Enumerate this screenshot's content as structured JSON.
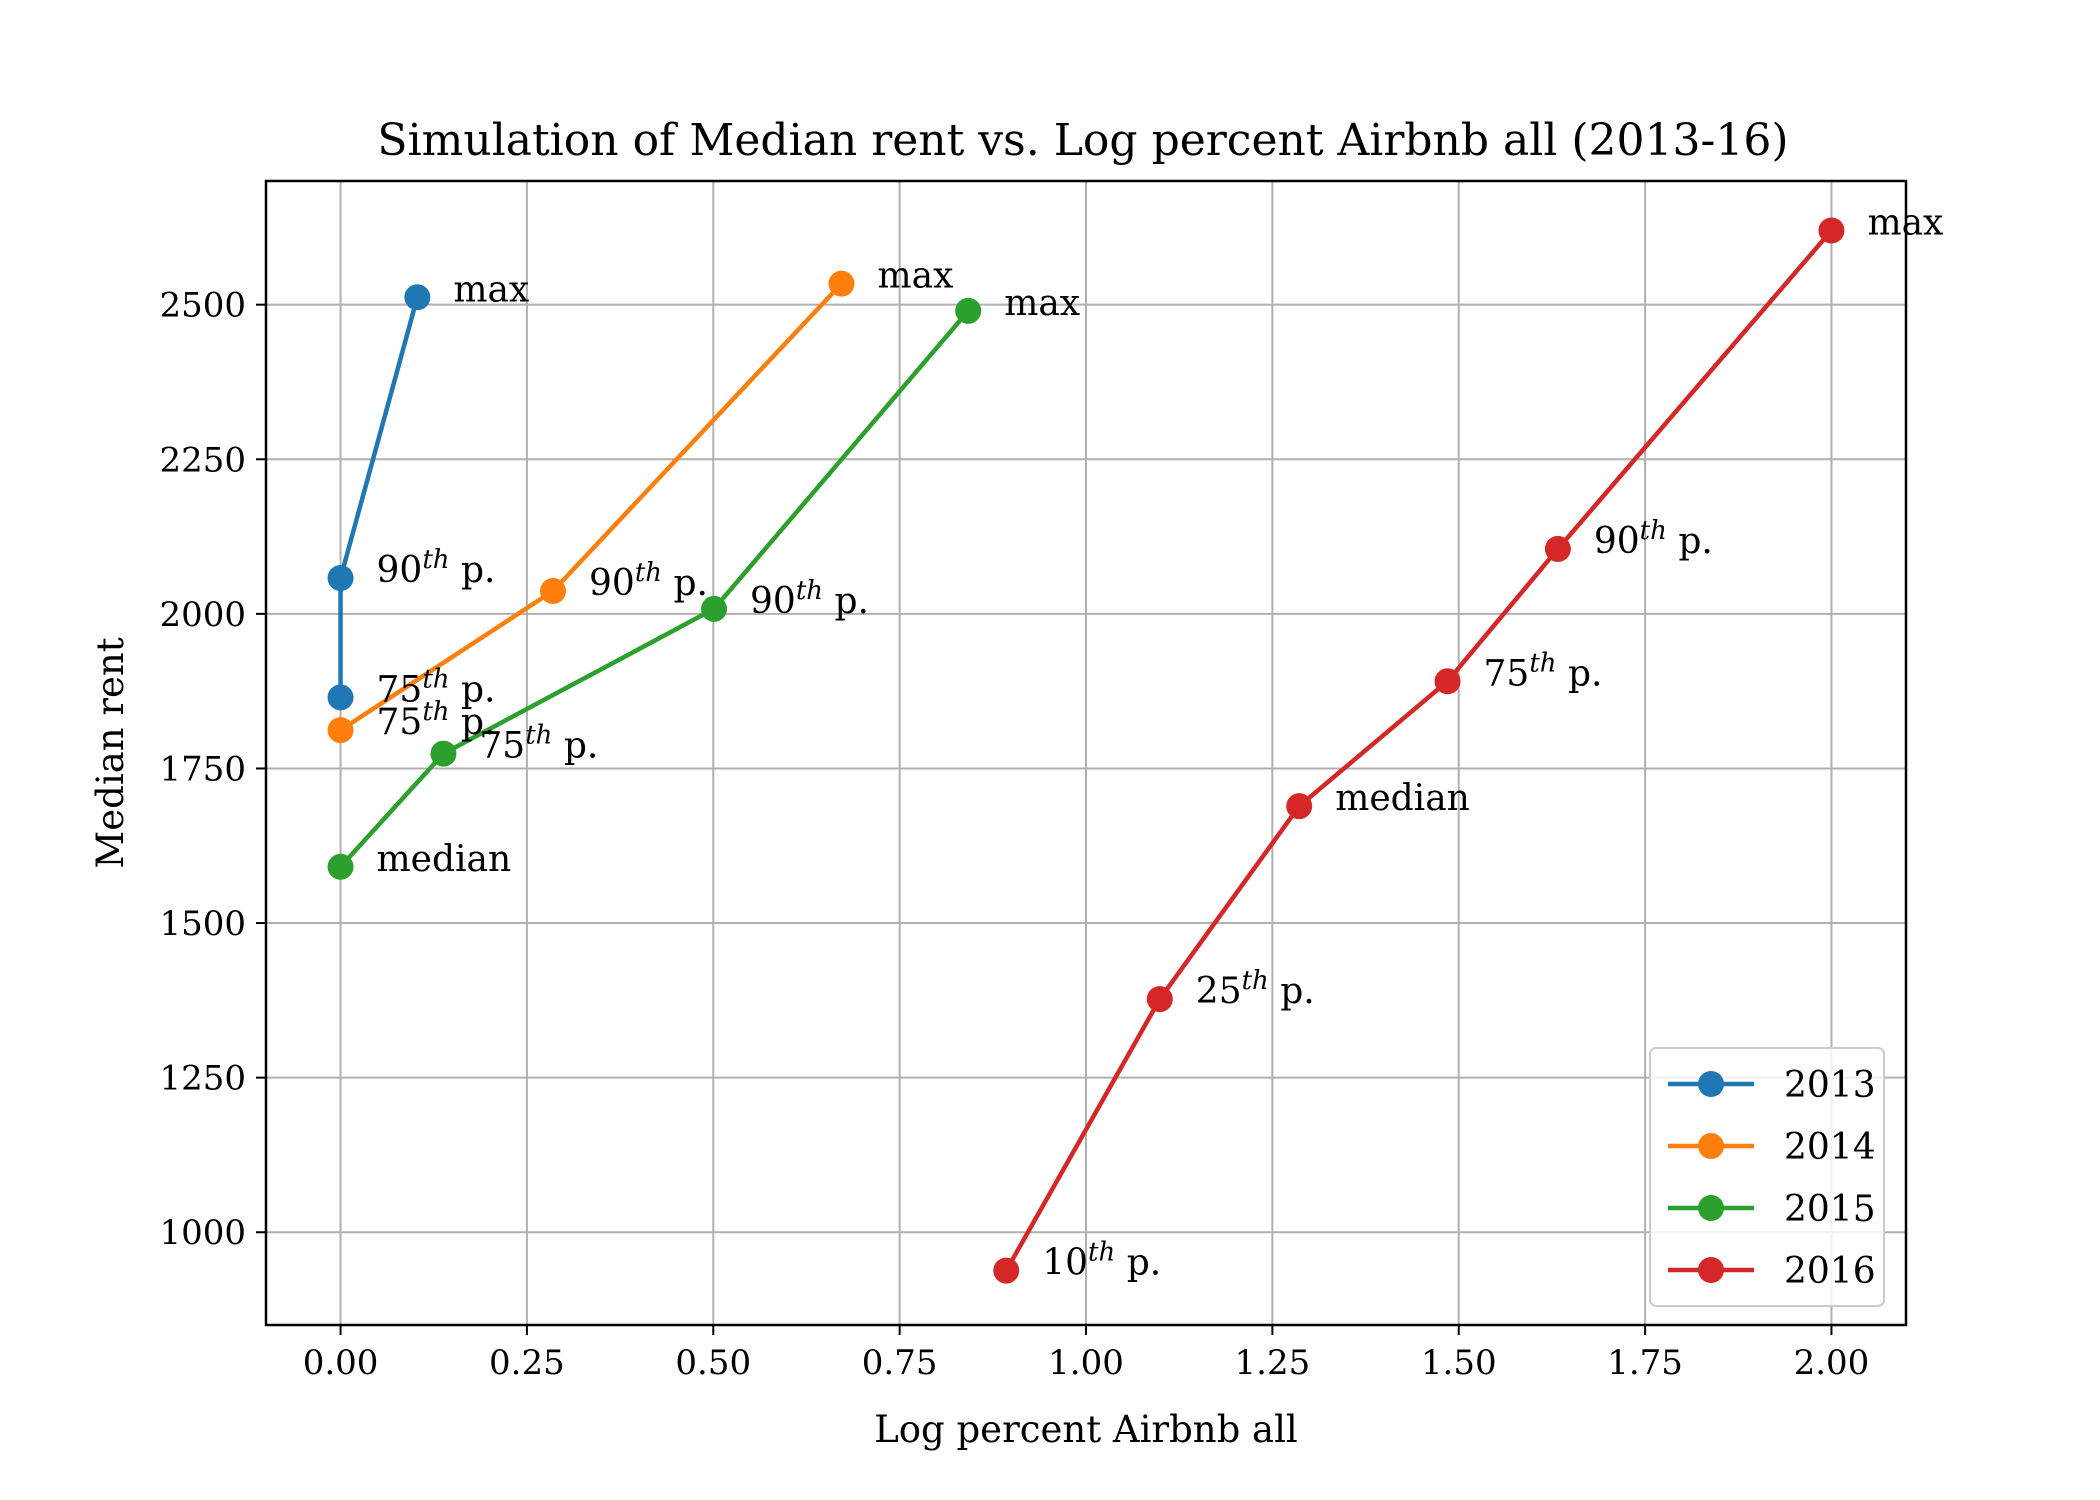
{
  "chart_data": {
    "type": "line",
    "title": "Simulation of Median rent vs. Log percent Airbnb all (2013-16)",
    "xlabel": "Log percent Airbnb all",
    "ylabel": "Median rent",
    "xlim": [
      -0.1,
      2.1
    ],
    "ylim": [
      850,
      2700
    ],
    "xticks": [
      0.0,
      0.25,
      0.5,
      0.75,
      1.0,
      1.25,
      1.5,
      1.75,
      2.0
    ],
    "xtick_labels": [
      "0.00",
      "0.25",
      "0.50",
      "0.75",
      "1.00",
      "1.25",
      "1.50",
      "1.75",
      "2.00"
    ],
    "yticks": [
      1000,
      1250,
      1500,
      1750,
      2000,
      2250,
      2500
    ],
    "ytick_labels": [
      "1000",
      "1250",
      "1500",
      "1750",
      "2000",
      "2250",
      "2500"
    ],
    "grid": true,
    "legend_position": "bottom-right",
    "series": [
      {
        "name": "2013",
        "color": "#1f77b4",
        "points": [
          {
            "x": 0.0,
            "y": 1865,
            "label": "75",
            "sup": "th",
            "suffix": " p."
          },
          {
            "x": 0.0,
            "y": 2058,
            "label": "90",
            "sup": "th",
            "suffix": " p."
          },
          {
            "x": 0.103,
            "y": 2512,
            "label": "max",
            "sup": "",
            "suffix": ""
          }
        ]
      },
      {
        "name": "2014",
        "color": "#ff7f0e",
        "points": [
          {
            "x": 0.0,
            "y": 1812,
            "label": "75",
            "sup": "th",
            "suffix": " p."
          },
          {
            "x": 0.285,
            "y": 2037,
            "label": "90",
            "sup": "th",
            "suffix": " p."
          },
          {
            "x": 0.672,
            "y": 2534,
            "label": "max",
            "sup": "",
            "suffix": ""
          }
        ]
      },
      {
        "name": "2015",
        "color": "#2ca02c",
        "points": [
          {
            "x": 0.0,
            "y": 1591,
            "label": "median",
            "sup": "",
            "suffix": ""
          },
          {
            "x": 0.138,
            "y": 1774,
            "label": "75",
            "sup": "th",
            "suffix": " p."
          },
          {
            "x": 0.501,
            "y": 2008,
            "label": "90",
            "sup": "th",
            "suffix": " p."
          },
          {
            "x": 0.842,
            "y": 2490,
            "label": "max",
            "sup": "",
            "suffix": ""
          }
        ]
      },
      {
        "name": "2016",
        "color": "#d62728",
        "points": [
          {
            "x": 0.893,
            "y": 938,
            "label": "10",
            "sup": "th",
            "suffix": " p."
          },
          {
            "x": 1.099,
            "y": 1377,
            "label": "25",
            "sup": "th",
            "suffix": " p."
          },
          {
            "x": 1.286,
            "y": 1689,
            "label": "median",
            "sup": "",
            "suffix": ""
          },
          {
            "x": 1.485,
            "y": 1891,
            "label": "75",
            "sup": "th",
            "suffix": " p."
          },
          {
            "x": 1.633,
            "y": 2105,
            "label": "90",
            "sup": "th",
            "suffix": " p."
          },
          {
            "x": 2.0,
            "y": 2620,
            "label": "max",
            "sup": "",
            "suffix": ""
          }
        ]
      }
    ]
  }
}
